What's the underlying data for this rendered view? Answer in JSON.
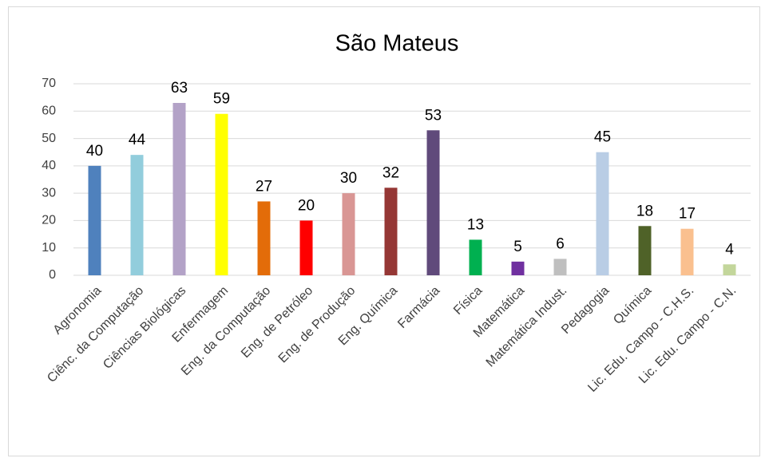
{
  "chart_data": {
    "type": "bar",
    "title": "São Mateus",
    "categories": [
      "Agronomia",
      "Ciênc. da Computação",
      "Ciências Biológicas",
      "Enfermagem",
      "Eng. da Computação",
      "Eng. de Petróleo",
      "Eng. de Produção",
      "Eng. Química",
      "Farmácia",
      "Física",
      "Matemática",
      "Matemática Indust.",
      "Pedagogia",
      "Química",
      "Lic. Edu. Campo - C.H.S.",
      "Lic. Edu. Campo - C.N."
    ],
    "values": [
      40,
      44,
      63,
      59,
      27,
      20,
      30,
      32,
      53,
      13,
      5,
      6,
      45,
      18,
      17,
      4
    ],
    "colors": [
      "#4f81bd",
      "#92cddc",
      "#b3a2c7",
      "#ffff00",
      "#e36c09",
      "#ff0000",
      "#d99694",
      "#953735",
      "#604a7b",
      "#00b050",
      "#7030a0",
      "#bfbfbf",
      "#b9cde5",
      "#4f6228",
      "#fac08f",
      "#c3d69b"
    ],
    "ylim": [
      0,
      70
    ],
    "yticks": [
      0,
      10,
      20,
      30,
      40,
      50,
      60,
      70
    ],
    "grid": true
  }
}
